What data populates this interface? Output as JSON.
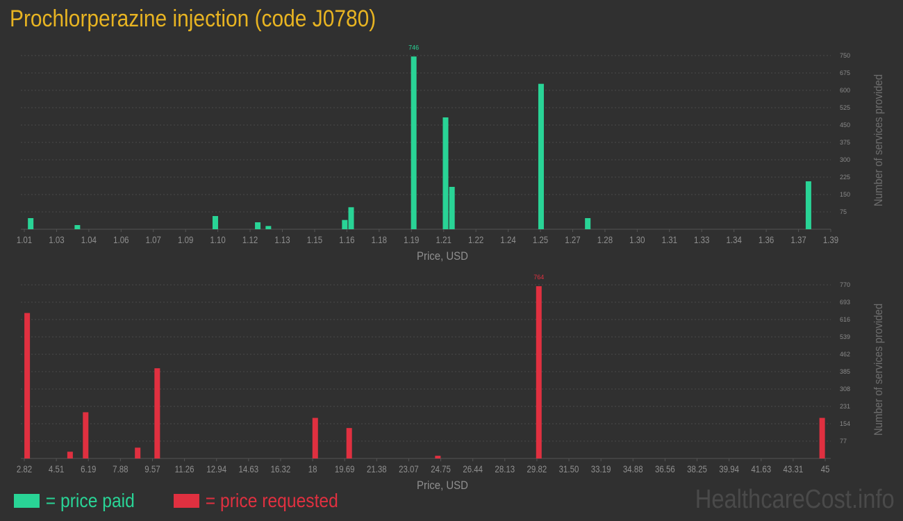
{
  "title": "Prochlorperazine injection (code J0780)",
  "legend": {
    "paid_label": "= price paid",
    "requested_label": "= price requested",
    "paid_color": "#29d496",
    "requested_color": "#e03040"
  },
  "watermark": "HealthcareCost.info",
  "chart_data": [
    {
      "type": "bar",
      "name": "price paid",
      "color": "#29d496",
      "xlabel": "Price, USD",
      "ylabel": "Number of services provided",
      "xlim": [
        1.01,
        1.39
      ],
      "ylim": [
        0,
        750
      ],
      "x_ticks": [
        "1.01",
        "1.03",
        "1.04",
        "1.06",
        "1.07",
        "1.09",
        "1.10",
        "1.12",
        "1.13",
        "1.15",
        "1.16",
        "1.18",
        "1.19",
        "1.21",
        "1.22",
        "1.24",
        "1.25",
        "1.27",
        "1.28",
        "1.30",
        "1.31",
        "1.33",
        "1.34",
        "1.36",
        "1.37",
        "1.39"
      ],
      "y_ticks": [
        75,
        150,
        225,
        300,
        375,
        450,
        525,
        600,
        675,
        750
      ],
      "grid": true,
      "max_label": "746",
      "points": [
        {
          "x": 1.013,
          "y": 48
        },
        {
          "x": 1.035,
          "y": 18
        },
        {
          "x": 1.1,
          "y": 57
        },
        {
          "x": 1.12,
          "y": 30
        },
        {
          "x": 1.125,
          "y": 14
        },
        {
          "x": 1.161,
          "y": 40
        },
        {
          "x": 1.164,
          "y": 95
        },
        {
          "x": 1.1935,
          "y": 746
        },
        {
          "x": 1.2085,
          "y": 483
        },
        {
          "x": 1.2115,
          "y": 183
        },
        {
          "x": 1.2535,
          "y": 628
        },
        {
          "x": 1.2755,
          "y": 48
        },
        {
          "x": 1.3795,
          "y": 207
        }
      ]
    },
    {
      "type": "bar",
      "name": "price requested",
      "color": "#e03040",
      "xlabel": "Price, USD",
      "ylabel": "Number of services provided",
      "xlim": [
        2.82,
        45
      ],
      "ylim": [
        0,
        770
      ],
      "x_ticks": [
        "2.82",
        "4.51",
        "6.19",
        "7.88",
        "9.57",
        "11.26",
        "12.94",
        "14.63",
        "16.32",
        "18",
        "19.69",
        "21.38",
        "23.07",
        "24.75",
        "26.44",
        "28.13",
        "29.82",
        "31.50",
        "33.19",
        "34.88",
        "36.56",
        "38.25",
        "39.94",
        "41.63",
        "43.31",
        "45"
      ],
      "y_ticks": [
        77,
        154,
        231,
        308,
        385,
        462,
        539,
        616,
        693,
        770
      ],
      "grid": true,
      "max_label": "764",
      "points": [
        {
          "x": 2.97,
          "y": 645
        },
        {
          "x": 5.23,
          "y": 30
        },
        {
          "x": 6.05,
          "y": 205
        },
        {
          "x": 8.79,
          "y": 48
        },
        {
          "x": 9.82,
          "y": 400
        },
        {
          "x": 18.14,
          "y": 180
        },
        {
          "x": 19.93,
          "y": 135
        },
        {
          "x": 24.6,
          "y": 12
        },
        {
          "x": 29.92,
          "y": 764
        },
        {
          "x": 44.84,
          "y": 180
        }
      ]
    }
  ]
}
